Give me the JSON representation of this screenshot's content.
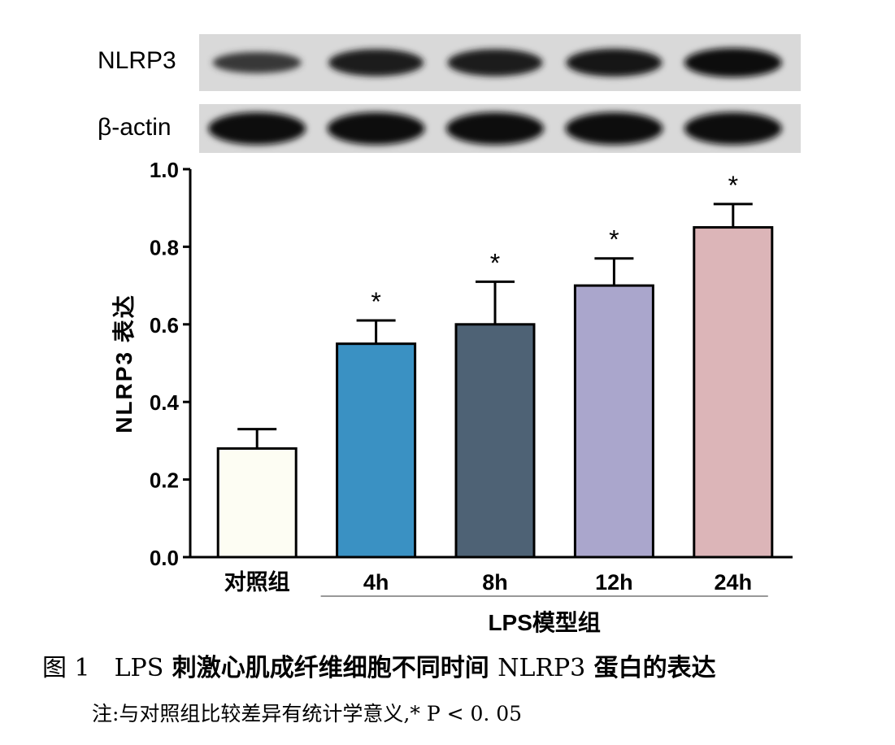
{
  "blot": {
    "rows": [
      {
        "label": "NLRP3",
        "intensity": [
          0.45,
          0.85,
          0.85,
          0.9,
          1.0
        ]
      },
      {
        "label": "β-actin",
        "intensity": [
          1.0,
          1.0,
          1.0,
          1.0,
          1.0
        ]
      }
    ]
  },
  "chart_data": {
    "type": "bar",
    "categories": [
      "对照组",
      "4h",
      "8h",
      "12h",
      "24h"
    ],
    "values": [
      0.28,
      0.55,
      0.6,
      0.7,
      0.85
    ],
    "errors": [
      0.05,
      0.06,
      0.11,
      0.07,
      0.06
    ],
    "significance": [
      "",
      "*",
      "*",
      "*",
      "*"
    ],
    "colors": [
      "#fdfdf3",
      "#3a91c3",
      "#4e6275",
      "#aaa6cc",
      "#dcb5b8"
    ],
    "title": "",
    "xlabel": "",
    "ylabel": "NLRP3 表达",
    "ylim": [
      0.0,
      1.0
    ],
    "yticks": [
      "0.0",
      "0.2",
      "0.4",
      "0.6",
      "0.8",
      "1.0"
    ],
    "group_label": "LPS模型组",
    "grid": false
  },
  "caption": {
    "figure_number": "图 1",
    "prefix": "LPS",
    "text_cn_1": " 刺激心肌成纤维细胞不同时间 ",
    "protein": "NLRP3",
    "text_cn_2": " 蛋白的表达"
  },
  "note": "注:与对照组比较差异有统计学意义,* P < 0. 05"
}
